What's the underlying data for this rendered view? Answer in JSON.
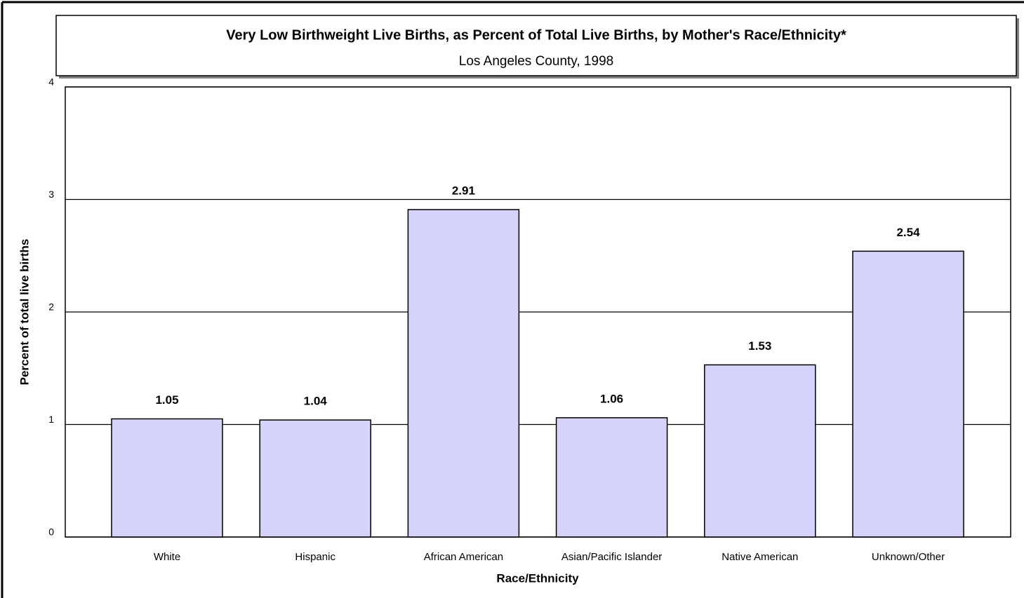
{
  "chart_data": {
    "type": "bar",
    "title": "Very Low Birthweight Live Births, as Percent of Total Live Births, by Mother's Race/Ethnicity*",
    "subtitle": "Los Angeles County, 1998",
    "y_label": "Percent of total live births",
    "x_label": "Race/Ethnicity",
    "categories": [
      "White",
      "Hispanic",
      "African American",
      "Asian/Pacific Islander",
      "Native American",
      "Unknown/Other"
    ],
    "values": [
      1.05,
      1.04,
      2.91,
      1.06,
      1.53,
      2.54
    ],
    "color": "#d6d3fa",
    "ylim": [
      0,
      4
    ],
    "yticks": [
      0,
      1,
      2,
      3,
      4
    ],
    "grid": true
  }
}
